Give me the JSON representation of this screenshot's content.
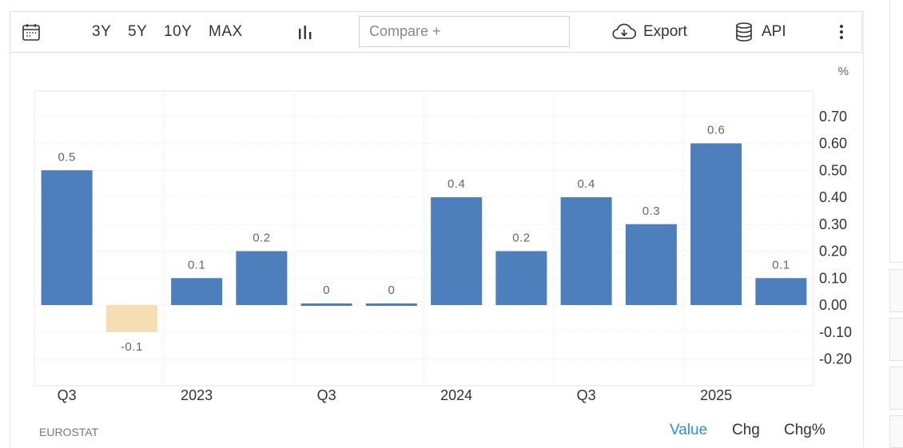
{
  "toolbar": {
    "ranges": [
      "3Y",
      "5Y",
      "10Y",
      "MAX"
    ],
    "compare_placeholder": "Compare +",
    "export_label": "Export",
    "api_label": "API"
  },
  "chart_data": {
    "type": "bar",
    "unit_label": "%",
    "values": [
      0.5,
      -0.1,
      0.1,
      0.2,
      0,
      0,
      0.4,
      0.2,
      0.4,
      0.3,
      0.6,
      0.1
    ],
    "data_labels": [
      "0.5",
      "-0.1",
      "0.1",
      "0.2",
      "0",
      "0",
      "0.4",
      "0.2",
      "0.4",
      "0.3",
      "0.6",
      "0.1"
    ],
    "x_ticks": [
      {
        "label": "Q3",
        "index": 0
      },
      {
        "label": "2023",
        "index": 2
      },
      {
        "label": "Q3",
        "index": 4
      },
      {
        "label": "2024",
        "index": 6
      },
      {
        "label": "Q3",
        "index": 8
      },
      {
        "label": "2025",
        "index": 10
      }
    ],
    "y_ticks": [
      "0.70",
      "0.60",
      "0.50",
      "0.40",
      "0.30",
      "0.20",
      "0.10",
      "0.00",
      "-0.10",
      "-0.20"
    ],
    "ylim": [
      -0.3,
      0.8
    ],
    "grid": true,
    "y_axis_position": "right",
    "colors": {
      "positive": "#4d7fbd",
      "negative": "#f5deb3",
      "data_label": "#666666"
    }
  },
  "footer": {
    "source": "EUROSTAT",
    "tabs": [
      "Value",
      "Chg",
      "Chg%"
    ],
    "active_tab": "Value",
    "active_color": "#2b8ee0"
  }
}
